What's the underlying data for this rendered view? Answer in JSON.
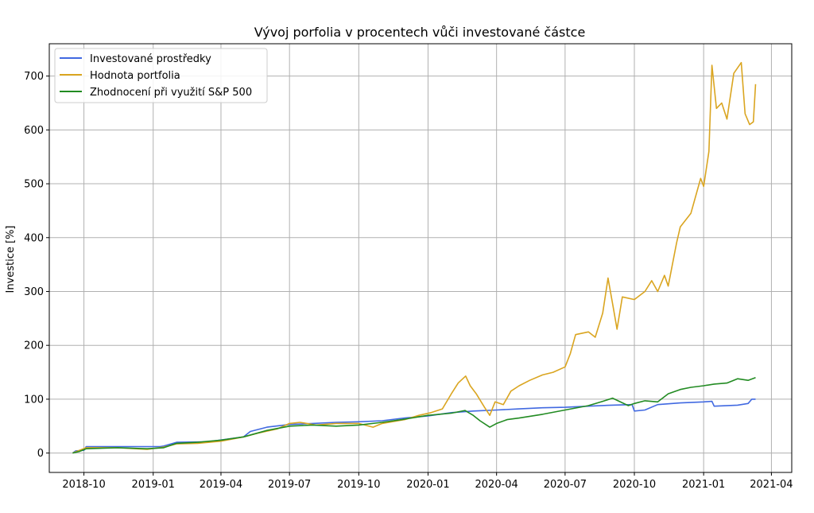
{
  "chart_data": {
    "type": "line",
    "title": "Vývoj porfolia v procentech vůči investované částce",
    "xlabel": "",
    "ylabel": "Investice [%]",
    "xlim": [
      "2018-08-16",
      "2021-04-28"
    ],
    "ylim": [
      -36,
      760
    ],
    "grid": true,
    "legend_position": "top-left",
    "x_ticks": [
      "2018-10-01",
      "2019-01-01",
      "2019-04-01",
      "2019-07-01",
      "2019-10-01",
      "2020-01-01",
      "2020-04-01",
      "2020-07-01",
      "2020-10-01",
      "2021-01-01",
      "2021-04-01"
    ],
    "x_tick_labels": [
      "2018-10",
      "2019-01",
      "2019-04",
      "2019-07",
      "2019-10",
      "2020-01",
      "2020-04",
      "2020-07",
      "2020-10",
      "2021-01",
      "2021-04"
    ],
    "y_ticks": [
      0,
      100,
      200,
      300,
      400,
      500,
      600,
      700
    ],
    "y_tick_labels": [
      "0",
      "100",
      "200",
      "300",
      "400",
      "500",
      "600",
      "700"
    ],
    "series": [
      {
        "name": "Investované prostředky",
        "color": "#4169E1",
        "points": [
          [
            "2018-09-16",
            0
          ],
          [
            "2018-09-20",
            4
          ],
          [
            "2018-10-01",
            5
          ],
          [
            "2018-10-04",
            12
          ],
          [
            "2018-11-15",
            12
          ],
          [
            "2018-12-20",
            12
          ],
          [
            "2019-01-10",
            12
          ],
          [
            "2019-01-15",
            13
          ],
          [
            "2019-02-01",
            20
          ],
          [
            "2019-03-15",
            21
          ],
          [
            "2019-04-05",
            25
          ],
          [
            "2019-05-01",
            30
          ],
          [
            "2019-05-10",
            40
          ],
          [
            "2019-06-01",
            48
          ],
          [
            "2019-07-01",
            53
          ],
          [
            "2019-08-01",
            55
          ],
          [
            "2019-09-01",
            57
          ],
          [
            "2019-10-01",
            58
          ],
          [
            "2019-11-01",
            60
          ],
          [
            "2019-12-01",
            65
          ],
          [
            "2020-01-01",
            69
          ],
          [
            "2020-02-01",
            75
          ],
          [
            "2020-03-01",
            78
          ],
          [
            "2020-04-01",
            80
          ],
          [
            "2020-05-01",
            82
          ],
          [
            "2020-06-01",
            84
          ],
          [
            "2020-07-01",
            85
          ],
          [
            "2020-08-01",
            87
          ],
          [
            "2020-09-01",
            89
          ],
          [
            "2020-09-28",
            90
          ],
          [
            "2020-10-01",
            78
          ],
          [
            "2020-10-15",
            80
          ],
          [
            "2020-11-01",
            90
          ],
          [
            "2020-12-01",
            93
          ],
          [
            "2021-01-01",
            95
          ],
          [
            "2021-01-12",
            96
          ],
          [
            "2021-01-15",
            87
          ],
          [
            "2021-02-15",
            89
          ],
          [
            "2021-03-01",
            92
          ],
          [
            "2021-03-06",
            100
          ],
          [
            "2021-03-11",
            100
          ]
        ]
      },
      {
        "name": "Hodnota portfolia",
        "color": "#DAA520",
        "points": [
          [
            "2018-09-16",
            0
          ],
          [
            "2018-09-25",
            5
          ],
          [
            "2018-10-04",
            10
          ],
          [
            "2018-11-15",
            10
          ],
          [
            "2018-12-24",
            7
          ],
          [
            "2019-01-15",
            11
          ],
          [
            "2019-02-01",
            17
          ],
          [
            "2019-03-01",
            18
          ],
          [
            "2019-04-01",
            22
          ],
          [
            "2019-05-01",
            30
          ],
          [
            "2019-05-20",
            37
          ],
          [
            "2019-06-15",
            45
          ],
          [
            "2019-07-01",
            55
          ],
          [
            "2019-07-15",
            57
          ],
          [
            "2019-08-05",
            52
          ],
          [
            "2019-09-01",
            55
          ],
          [
            "2019-10-01",
            55
          ],
          [
            "2019-10-20",
            48
          ],
          [
            "2019-11-01",
            55
          ],
          [
            "2019-12-01",
            62
          ],
          [
            "2019-12-20",
            70
          ],
          [
            "2020-01-05",
            75
          ],
          [
            "2020-01-20",
            82
          ],
          [
            "2020-02-01",
            110
          ],
          [
            "2020-02-10",
            130
          ],
          [
            "2020-02-20",
            143
          ],
          [
            "2020-02-26",
            125
          ],
          [
            "2020-03-05",
            110
          ],
          [
            "2020-03-16",
            85
          ],
          [
            "2020-03-23",
            70
          ],
          [
            "2020-03-30",
            95
          ],
          [
            "2020-04-10",
            90
          ],
          [
            "2020-04-20",
            115
          ],
          [
            "2020-05-01",
            125
          ],
          [
            "2020-05-15",
            135
          ],
          [
            "2020-06-01",
            145
          ],
          [
            "2020-06-15",
            150
          ],
          [
            "2020-07-01",
            160
          ],
          [
            "2020-07-08",
            185
          ],
          [
            "2020-07-15",
            220
          ],
          [
            "2020-08-01",
            225
          ],
          [
            "2020-08-10",
            215
          ],
          [
            "2020-08-20",
            260
          ],
          [
            "2020-08-27",
            325
          ],
          [
            "2020-09-03",
            270
          ],
          [
            "2020-09-08",
            230
          ],
          [
            "2020-09-15",
            290
          ],
          [
            "2020-10-01",
            285
          ],
          [
            "2020-10-15",
            300
          ],
          [
            "2020-10-24",
            320
          ],
          [
            "2020-11-01",
            300
          ],
          [
            "2020-11-10",
            330
          ],
          [
            "2020-11-15",
            310
          ],
          [
            "2020-11-26",
            390
          ],
          [
            "2020-12-01",
            420
          ],
          [
            "2020-12-15",
            445
          ],
          [
            "2020-12-28",
            510
          ],
          [
            "2021-01-01",
            495
          ],
          [
            "2021-01-08",
            560
          ],
          [
            "2021-01-12",
            720
          ],
          [
            "2021-01-18",
            640
          ],
          [
            "2021-01-25",
            650
          ],
          [
            "2021-02-01",
            620
          ],
          [
            "2021-02-10",
            705
          ],
          [
            "2021-02-20",
            725
          ],
          [
            "2021-02-25",
            630
          ],
          [
            "2021-03-03",
            610
          ],
          [
            "2021-03-08",
            615
          ],
          [
            "2021-03-11",
            685
          ]
        ]
      },
      {
        "name": "Zhodnocení při využití S&P 500",
        "color": "#228B22",
        "points": [
          [
            "2018-09-16",
            0
          ],
          [
            "2018-09-25",
            3
          ],
          [
            "2018-10-04",
            8
          ],
          [
            "2018-11-15",
            10
          ],
          [
            "2018-12-24",
            8
          ],
          [
            "2019-01-15",
            10
          ],
          [
            "2019-02-01",
            18
          ],
          [
            "2019-03-01",
            20
          ],
          [
            "2019-04-01",
            24
          ],
          [
            "2019-05-01",
            30
          ],
          [
            "2019-06-01",
            42
          ],
          [
            "2019-07-01",
            50
          ],
          [
            "2019-08-01",
            52
          ],
          [
            "2019-09-01",
            50
          ],
          [
            "2019-10-01",
            52
          ],
          [
            "2019-11-01",
            57
          ],
          [
            "2019-12-01",
            63
          ],
          [
            "2020-01-01",
            70
          ],
          [
            "2020-02-01",
            74
          ],
          [
            "2020-02-19",
            79
          ],
          [
            "2020-03-01",
            70
          ],
          [
            "2020-03-10",
            60
          ],
          [
            "2020-03-23",
            48
          ],
          [
            "2020-04-01",
            55
          ],
          [
            "2020-04-15",
            62
          ],
          [
            "2020-05-01",
            65
          ],
          [
            "2020-06-01",
            72
          ],
          [
            "2020-07-01",
            80
          ],
          [
            "2020-08-01",
            88
          ],
          [
            "2020-08-20",
            96
          ],
          [
            "2020-09-02",
            102
          ],
          [
            "2020-09-23",
            88
          ],
          [
            "2020-10-01",
            92
          ],
          [
            "2020-10-15",
            97
          ],
          [
            "2020-11-01",
            95
          ],
          [
            "2020-11-15",
            110
          ],
          [
            "2020-12-01",
            118
          ],
          [
            "2020-12-15",
            122
          ],
          [
            "2021-01-01",
            125
          ],
          [
            "2021-01-15",
            128
          ],
          [
            "2021-02-01",
            130
          ],
          [
            "2021-02-15",
            138
          ],
          [
            "2021-03-01",
            135
          ],
          [
            "2021-03-11",
            140
          ]
        ]
      }
    ]
  }
}
